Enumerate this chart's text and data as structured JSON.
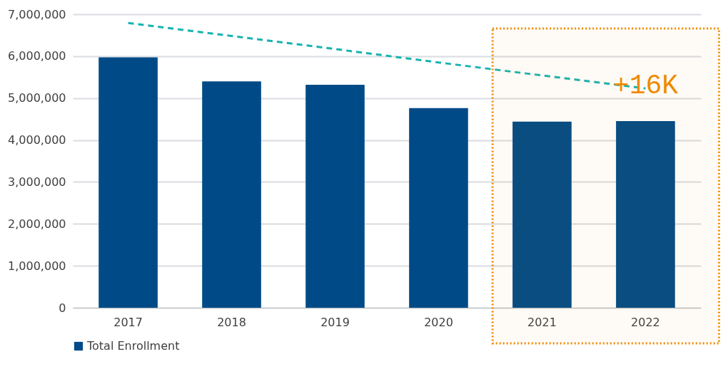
{
  "chart_data": {
    "type": "bar",
    "categories": [
      "2017",
      "2018",
      "2019",
      "2020",
      "2021",
      "2022"
    ],
    "series": [
      {
        "name": "Total Enrollment",
        "color": "#004b87",
        "values": [
          5970000,
          5400000,
          5320000,
          4760000,
          4440000,
          4450000
        ]
      },
      {
        "type": "line",
        "color": "#17b3b0",
        "line_style": "dashed",
        "values": [
          6790000,
          6480000,
          6170000,
          5850000,
          5540000,
          5230000
        ]
      }
    ],
    "ylim": [
      0,
      7000000
    ],
    "yticks": [
      0,
      {
        "value": 1000000,
        "label": "1,000,000"
      },
      {
        "value": 2000000,
        "label": "2,000,000"
      },
      {
        "value": 3000000,
        "label": "3,000,000"
      },
      {
        "value": 4000000,
        "label": "4,000,000"
      },
      {
        "value": 5000000,
        "label": "5,000,000"
      },
      {
        "value": 6000000,
        "label": "6,000,000"
      },
      {
        "value": 7000000,
        "label": "7,000,000"
      }
    ],
    "grid": "y",
    "legend": "bottom",
    "bands": [
      {
        "axis": "x",
        "from": "2021",
        "to": "2022",
        "color": "#ef8a00"
      }
    ],
    "annotations": [
      {
        "text": "+16K",
        "x": "2022",
        "y": 5300000
      }
    ]
  }
}
